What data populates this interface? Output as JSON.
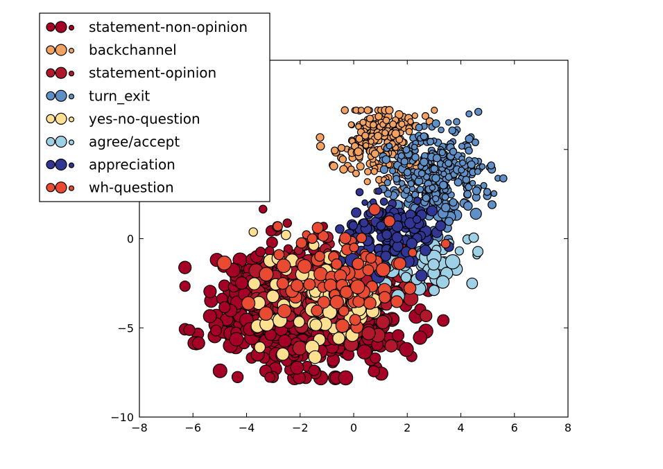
{
  "chart_data": {
    "type": "scatter",
    "title": "",
    "xlabel": "",
    "ylabel": "",
    "xlim": [
      -8,
      8
    ],
    "ylim": [
      -10,
      10
    ],
    "x_ticks": [
      -8,
      -6,
      -4,
      -2,
      0,
      2,
      4,
      6,
      8
    ],
    "x_tick_labels": [
      "−8",
      "−6",
      "−4",
      "−2",
      "0",
      "2",
      "4",
      "6",
      "8"
    ],
    "y_ticks": [
      -10,
      -5,
      0
    ],
    "y_tick_labels": [
      "−10",
      "−5",
      "0"
    ],
    "grid": false,
    "legend_position": "top-left",
    "series": [
      {
        "name": "statement-non-opinion",
        "color": "#a50026",
        "cluster": {
          "cx": -1.8,
          "cy": -4.0,
          "rx": 3.6,
          "ry": 3.6,
          "count": 700
        }
      },
      {
        "name": "backchannel",
        "color": "#f4a261",
        "cluster": {
          "cx": 1.0,
          "cy": 5.5,
          "rx": 1.8,
          "ry": 2.4,
          "count": 260
        }
      },
      {
        "name": "statement-opinion",
        "color": "#b2182b",
        "cluster": {
          "cx": -0.5,
          "cy": -3.0,
          "rx": 3.0,
          "ry": 2.6,
          "count": 220
        }
      },
      {
        "name": "turn_exit",
        "color": "#5e8fc6",
        "cluster": {
          "cx": 3.0,
          "cy": 3.5,
          "rx": 2.0,
          "ry": 3.2,
          "count": 320
        }
      },
      {
        "name": "yes-no-question",
        "color": "#fee090",
        "cluster": {
          "cx": -1.0,
          "cy": -3.5,
          "rx": 3.0,
          "ry": 3.0,
          "count": 90
        }
      },
      {
        "name": "agree/accept",
        "color": "#9fd1e6",
        "cluster": {
          "cx": 2.5,
          "cy": -1.0,
          "rx": 2.4,
          "ry": 2.0,
          "count": 60
        }
      },
      {
        "name": "appreciation",
        "color": "#313695",
        "cluster": {
          "cx": 1.5,
          "cy": 0.5,
          "rx": 2.0,
          "ry": 2.2,
          "count": 140
        }
      },
      {
        "name": "wh-question",
        "color": "#e84a32",
        "cluster": {
          "cx": -0.5,
          "cy": -2.0,
          "rx": 3.0,
          "ry": 3.0,
          "count": 80
        }
      }
    ]
  }
}
